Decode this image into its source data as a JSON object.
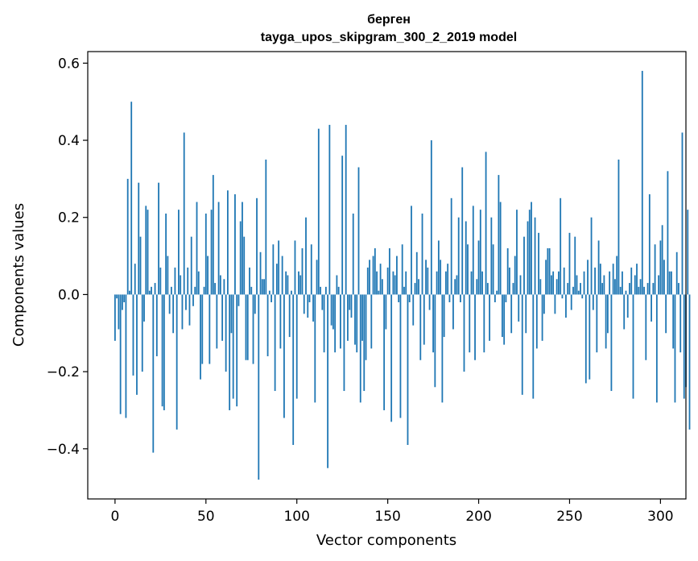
{
  "chart_data": {
    "type": "bar",
    "title_line1": "берген",
    "title_line2": "tayga_upos_skipgram_300_2_2019 model",
    "xlabel": "Vector components",
    "ylabel": "Components values",
    "xlim": [
      -15,
      314
    ],
    "ylim": [
      -0.53,
      0.63
    ],
    "xticks": [
      0,
      50,
      100,
      150,
      200,
      250,
      300
    ],
    "xtick_labels": [
      "0",
      "50",
      "100",
      "150",
      "200",
      "250",
      "300"
    ],
    "yticks": [
      -0.4,
      -0.2,
      0.0,
      0.2,
      0.4,
      0.6
    ],
    "ytick_labels": [
      "−0.4",
      "−0.2",
      "0.0",
      "0.2",
      "0.4",
      "0.6"
    ],
    "bar_color": "#1f77b4",
    "values": [
      -0.12,
      -0.01,
      -0.09,
      -0.31,
      -0.04,
      -0.02,
      -0.32,
      0.3,
      0.01,
      0.5,
      -0.21,
      0.08,
      -0.26,
      0.29,
      0.15,
      -0.2,
      -0.07,
      0.23,
      0.22,
      0.01,
      0.02,
      -0.41,
      0.03,
      -0.16,
      0.29,
      0.07,
      -0.29,
      -0.3,
      0.21,
      0.1,
      -0.05,
      0.02,
      -0.1,
      0.07,
      -0.35,
      0.22,
      0.05,
      -0.09,
      0.42,
      -0.04,
      0.07,
      -0.08,
      0.15,
      -0.03,
      0.02,
      0.24,
      0.06,
      -0.22,
      -0.18,
      0.02,
      0.21,
      0.1,
      -0.18,
      0.22,
      0.31,
      0.03,
      -0.14,
      0.24,
      0.05,
      -0.12,
      0.04,
      -0.2,
      0.27,
      -0.3,
      -0.1,
      -0.27,
      0.26,
      -0.29,
      -0.03,
      0.19,
      0.24,
      0.15,
      -0.17,
      -0.17,
      0.07,
      0.02,
      -0.18,
      -0.05,
      0.25,
      -0.48,
      0.11,
      0.04,
      0.04,
      0.35,
      -0.16,
      0.01,
      -0.02,
      0.13,
      -0.25,
      0.08,
      0.14,
      -0.14,
      0.1,
      -0.32,
      0.06,
      0.05,
      -0.11,
      0.01,
      -0.39,
      0.14,
      -0.27,
      0.06,
      0.05,
      0.12,
      -0.05,
      0.2,
      -0.06,
      -0.02,
      0.13,
      -0.07,
      -0.28,
      0.09,
      0.43,
      0.02,
      -0.04,
      -0.15,
      0.02,
      -0.45,
      0.44,
      -0.08,
      -0.09,
      -0.15,
      0.05,
      0.02,
      -0.14,
      0.36,
      -0.25,
      0.44,
      -0.12,
      -0.04,
      -0.06,
      0.21,
      -0.13,
      -0.15,
      0.33,
      -0.28,
      -0.12,
      -0.25,
      -0.17,
      0.07,
      0.09,
      -0.14,
      0.1,
      0.12,
      0.06,
      0.01,
      0.08,
      0.04,
      -0.3,
      -0.09,
      0.07,
      0.12,
      -0.33,
      0.06,
      0.05,
      0.1,
      -0.02,
      -0.32,
      0.13,
      0.02,
      0.06,
      -0.39,
      -0.02,
      0.23,
      -0.08,
      0.03,
      0.11,
      0.04,
      -0.17,
      0.21,
      -0.13,
      0.09,
      0.07,
      -0.04,
      0.4,
      -0.15,
      -0.24,
      0.06,
      0.14,
      0.09,
      -0.28,
      -0.11,
      0.06,
      0.08,
      -0.02,
      0.25,
      -0.09,
      0.04,
      0.05,
      0.2,
      -0.02,
      0.33,
      -0.2,
      0.19,
      0.13,
      -0.15,
      0.06,
      0.23,
      -0.17,
      0.04,
      0.14,
      0.22,
      0.06,
      -0.15,
      0.37,
      0.03,
      -0.12,
      0.2,
      0.13,
      -0.02,
      0.01,
      0.31,
      0.24,
      -0.11,
      -0.13,
      -0.02,
      0.12,
      0.07,
      -0.1,
      0.03,
      0.1,
      0.22,
      -0.07,
      0.05,
      -0.26,
      0.15,
      -0.1,
      0.19,
      0.22,
      0.24,
      -0.27,
      0.2,
      -0.14,
      0.16,
      0.04,
      -0.12,
      -0.05,
      0.09,
      0.12,
      0.12,
      0.05,
      0.06,
      -0.05,
      0.04,
      0.06,
      0.25,
      -0.01,
      0.07,
      -0.06,
      0.03,
      0.16,
      -0.04,
      0.02,
      0.15,
      0.05,
      0.01,
      0.03,
      -0.01,
      0.06,
      -0.23,
      0.09,
      -0.22,
      0.2,
      -0.04,
      0.07,
      -0.15,
      0.14,
      0.08,
      0.03,
      0.05,
      -0.14,
      -0.1,
      0.06,
      -0.25,
      0.08,
      0.04,
      0.1,
      0.35,
      0.02,
      0.06,
      -0.09,
      0.01,
      -0.06,
      0.03,
      0.07,
      -0.27,
      0.05,
      0.08,
      0.02,
      0.04,
      0.58,
      0.02,
      -0.17,
      0.03,
      0.26,
      -0.07,
      0.03,
      0.13,
      -0.28,
      0.05,
      0.14,
      0.18,
      0.09,
      -0.1,
      0.32,
      0.06,
      0.06,
      -0.14,
      -0.28,
      0.11,
      0.03,
      -0.15,
      0.42,
      -0.27,
      -0.24,
      0.22,
      -0.35
    ]
  }
}
